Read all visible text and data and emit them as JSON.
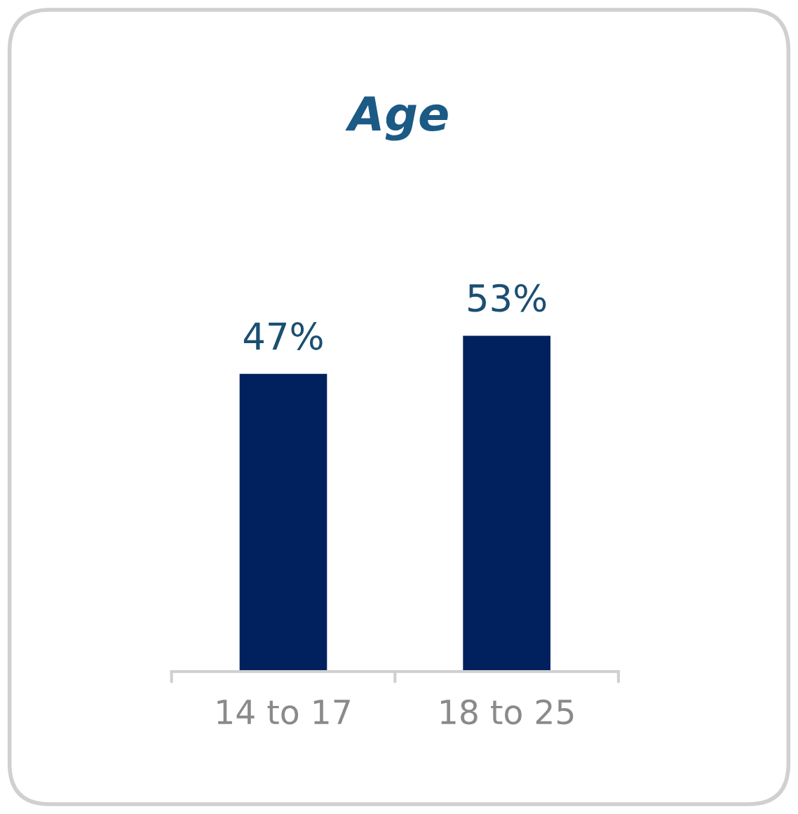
{
  "chart_data": {
    "type": "bar",
    "title": "Age",
    "categories": [
      "14 to 17",
      "18 to 25"
    ],
    "values": [
      47,
      53
    ],
    "value_labels": [
      "47%",
      "53%"
    ],
    "color": "#00215e"
  }
}
